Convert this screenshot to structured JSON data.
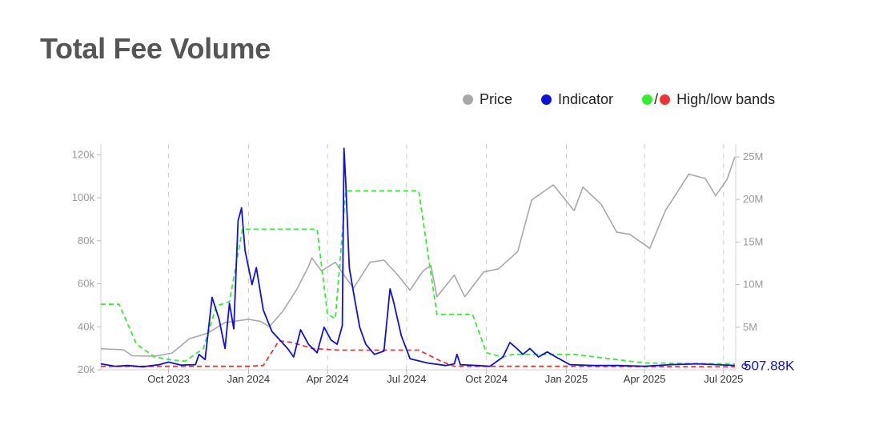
{
  "title": "Total Fee Volume",
  "legend": {
    "price_label": "Price",
    "indicator_label": "Indicator",
    "bands_label": "High/low bands",
    "bands_slash": "/"
  },
  "colors": {
    "price": "#a8a8a8",
    "indicator": "#1010dd",
    "high_band": "#33ee33",
    "low_band": "#ee3333",
    "axis_text": "#999999",
    "grid": "#cccccc",
    "latest_label": "#1010dd"
  },
  "chart_data": {
    "type": "line",
    "title": "Total Fee Volume",
    "x_ticks": [
      "Oct 2023",
      "Jan 2024",
      "Apr 2024",
      "Jul 2024",
      "Oct 2024",
      "Jan 2025",
      "Apr 2025",
      "Jul 2025"
    ],
    "x_tick_dates": [
      "2023-10-01",
      "2024-01-01",
      "2024-04-01",
      "2024-07-01",
      "2024-10-01",
      "2025-01-01",
      "2025-04-01",
      "2025-07-01"
    ],
    "x_range": [
      "2023-07-15",
      "2025-07-15"
    ],
    "y_left": {
      "ticks": [
        "20k",
        "40k",
        "60k",
        "80k",
        "100k",
        "120k"
      ],
      "range": [
        20000,
        125000
      ]
    },
    "y_right": {
      "ticks": [
        "5M",
        "10M",
        "15M",
        "20M",
        "25M"
      ],
      "range": [
        0,
        26500000
      ]
    },
    "grid": "vertical dashed at x ticks",
    "legend_position": "top-right",
    "latest_value_label": "507.88K",
    "series": [
      {
        "name": "Price",
        "axis": "left",
        "style": "solid",
        "points": [
          [
            "2023-07-15",
            29800
          ],
          [
            "2023-08-10",
            29300
          ],
          [
            "2023-08-20",
            26500
          ],
          [
            "2023-09-15",
            26300
          ],
          [
            "2023-10-05",
            27800
          ],
          [
            "2023-10-25",
            34500
          ],
          [
            "2023-11-15",
            37000
          ],
          [
            "2023-12-05",
            42000
          ],
          [
            "2024-01-01",
            43500
          ],
          [
            "2024-01-15",
            42500
          ],
          [
            "2024-01-25",
            40000
          ],
          [
            "2024-02-10",
            47500
          ],
          [
            "2024-02-25",
            57000
          ],
          [
            "2024-03-10",
            68000
          ],
          [
            "2024-03-14",
            72000
          ],
          [
            "2024-03-25",
            66000
          ],
          [
            "2024-04-10",
            70000
          ],
          [
            "2024-04-20",
            64000
          ],
          [
            "2024-05-01",
            58000
          ],
          [
            "2024-05-20",
            70000
          ],
          [
            "2024-06-05",
            71000
          ],
          [
            "2024-06-20",
            64500
          ],
          [
            "2024-07-05",
            57000
          ],
          [
            "2024-07-20",
            66000
          ],
          [
            "2024-07-29",
            68500
          ],
          [
            "2024-08-05",
            54000
          ],
          [
            "2024-08-25",
            64000
          ],
          [
            "2024-09-06",
            54000
          ],
          [
            "2024-09-28",
            65500
          ],
          [
            "2024-10-15",
            67000
          ],
          [
            "2024-11-06",
            75000
          ],
          [
            "2024-11-22",
            99000
          ],
          [
            "2024-12-17",
            106000
          ],
          [
            "2025-01-10",
            94000
          ],
          [
            "2025-01-20",
            105000
          ],
          [
            "2025-02-10",
            97000
          ],
          [
            "2025-02-28",
            84000
          ],
          [
            "2025-03-15",
            83000
          ],
          [
            "2025-04-07",
            76500
          ],
          [
            "2025-04-25",
            94000
          ],
          [
            "2025-05-22",
            111000
          ],
          [
            "2025-06-10",
            109000
          ],
          [
            "2025-06-22",
            101000
          ],
          [
            "2025-07-05",
            108500
          ],
          [
            "2025-07-14",
            119000
          ]
        ]
      },
      {
        "name": "Indicator",
        "axis": "right",
        "style": "solid",
        "points": [
          [
            "2023-07-15",
            700000
          ],
          [
            "2023-08-01",
            400000
          ],
          [
            "2023-08-15",
            500000
          ],
          [
            "2023-09-01",
            350000
          ],
          [
            "2023-09-20",
            600000
          ],
          [
            "2023-10-01",
            900000
          ],
          [
            "2023-10-15",
            550000
          ],
          [
            "2023-11-01",
            600000
          ],
          [
            "2023-11-05",
            1800000
          ],
          [
            "2023-11-12",
            1200000
          ],
          [
            "2023-11-20",
            8500000
          ],
          [
            "2023-11-28",
            6000000
          ],
          [
            "2023-12-05",
            2500000
          ],
          [
            "2023-12-10",
            7800000
          ],
          [
            "2023-12-15",
            4800000
          ],
          [
            "2023-12-20",
            17500000
          ],
          [
            "2023-12-24",
            19000000
          ],
          [
            "2023-12-28",
            14000000
          ],
          [
            "2024-01-05",
            10000000
          ],
          [
            "2024-01-10",
            12000000
          ],
          [
            "2024-01-18",
            7000000
          ],
          [
            "2024-01-28",
            4500000
          ],
          [
            "2024-02-15",
            2500000
          ],
          [
            "2024-02-22",
            1500000
          ],
          [
            "2024-03-01",
            4700000
          ],
          [
            "2024-03-10",
            3000000
          ],
          [
            "2024-03-20",
            2000000
          ],
          [
            "2024-03-28",
            5000000
          ],
          [
            "2024-04-05",
            3500000
          ],
          [
            "2024-04-12",
            3000000
          ],
          [
            "2024-04-18",
            5200000
          ],
          [
            "2024-04-20",
            26000000
          ],
          [
            "2024-04-22",
            22000000
          ],
          [
            "2024-04-26",
            12000000
          ],
          [
            "2024-05-01",
            9000000
          ],
          [
            "2024-05-08",
            5000000
          ],
          [
            "2024-05-15",
            3000000
          ],
          [
            "2024-05-25",
            1800000
          ],
          [
            "2024-06-05",
            2200000
          ],
          [
            "2024-06-12",
            9500000
          ],
          [
            "2024-06-16",
            8000000
          ],
          [
            "2024-06-25",
            4000000
          ],
          [
            "2024-07-05",
            1300000
          ],
          [
            "2024-07-25",
            800000
          ],
          [
            "2024-08-15",
            500000
          ],
          [
            "2024-08-25",
            700000
          ],
          [
            "2024-08-28",
            1800000
          ],
          [
            "2024-09-01",
            600000
          ],
          [
            "2024-09-20",
            500000
          ],
          [
            "2024-10-05",
            400000
          ],
          [
            "2024-10-20",
            1500000
          ],
          [
            "2024-10-28",
            3200000
          ],
          [
            "2024-11-05",
            2500000
          ],
          [
            "2024-11-12",
            1800000
          ],
          [
            "2024-11-20",
            2500000
          ],
          [
            "2024-11-30",
            1500000
          ],
          [
            "2024-12-10",
            2100000
          ],
          [
            "2024-12-20",
            1500000
          ],
          [
            "2025-01-05",
            600000
          ],
          [
            "2025-02-01",
            500000
          ],
          [
            "2025-03-01",
            500000
          ],
          [
            "2025-04-01",
            400000
          ],
          [
            "2025-05-01",
            600000
          ],
          [
            "2025-06-01",
            700000
          ],
          [
            "2025-07-14",
            507880
          ]
        ]
      },
      {
        "name": "High band",
        "axis": "right",
        "style": "dashed",
        "points": [
          [
            "2023-07-15",
            7700000
          ],
          [
            "2023-08-05",
            7700000
          ],
          [
            "2023-08-25",
            3000000
          ],
          [
            "2023-09-15",
            1500000
          ],
          [
            "2023-10-01",
            1200000
          ],
          [
            "2023-10-20",
            1000000
          ],
          [
            "2023-11-10",
            2500000
          ],
          [
            "2023-11-25",
            7500000
          ],
          [
            "2023-12-10",
            8000000
          ],
          [
            "2023-12-25",
            16500000
          ],
          [
            "2024-03-20",
            16500000
          ],
          [
            "2024-04-01",
            6500000
          ],
          [
            "2024-04-10",
            6000000
          ],
          [
            "2024-04-22",
            21000000
          ],
          [
            "2024-07-15",
            21000000
          ],
          [
            "2024-08-05",
            6500000
          ],
          [
            "2024-09-15",
            6500000
          ],
          [
            "2024-10-01",
            2000000
          ],
          [
            "2024-10-20",
            1500000
          ],
          [
            "2024-11-01",
            1800000
          ],
          [
            "2025-01-10",
            1800000
          ],
          [
            "2025-04-01",
            800000
          ],
          [
            "2025-07-14",
            700000
          ]
        ]
      },
      {
        "name": "Low band",
        "axis": "right",
        "style": "dashed",
        "points": [
          [
            "2023-07-15",
            400000
          ],
          [
            "2024-01-01",
            400000
          ],
          [
            "2024-01-18",
            500000
          ],
          [
            "2024-02-05",
            3400000
          ],
          [
            "2024-02-20",
            3200000
          ],
          [
            "2024-03-15",
            2500000
          ],
          [
            "2024-04-15",
            2300000
          ],
          [
            "2024-07-15",
            2300000
          ],
          [
            "2024-08-10",
            1000000
          ],
          [
            "2024-08-25",
            400000
          ],
          [
            "2025-01-05",
            400000
          ],
          [
            "2025-07-14",
            350000
          ]
        ]
      }
    ]
  }
}
